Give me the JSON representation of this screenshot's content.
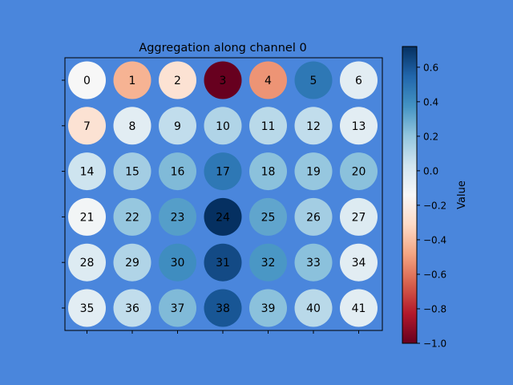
{
  "chart_data": {
    "type": "heatmap",
    "title": "Aggregation along channel 0",
    "rows": 6,
    "cols": 7,
    "cell_labels": [
      "0",
      "1",
      "2",
      "3",
      "4",
      "5",
      "6",
      "7",
      "8",
      "9",
      "10",
      "11",
      "12",
      "13",
      "14",
      "15",
      "16",
      "17",
      "18",
      "19",
      "20",
      "21",
      "22",
      "23",
      "24",
      "25",
      "26",
      "27",
      "28",
      "29",
      "30",
      "31",
      "32",
      "33",
      "34",
      "35",
      "36",
      "37",
      "38",
      "39",
      "40",
      "41"
    ],
    "values": [
      0.0,
      -0.35,
      -0.15,
      -1.0,
      -0.45,
      0.52,
      0.08,
      -0.15,
      0.08,
      0.18,
      0.22,
      0.2,
      0.18,
      0.08,
      0.15,
      0.25,
      0.32,
      0.52,
      0.3,
      0.28,
      0.3,
      0.02,
      0.28,
      0.4,
      0.72,
      0.38,
      0.25,
      0.1,
      0.1,
      0.22,
      0.45,
      0.65,
      0.42,
      0.3,
      0.08,
      0.08,
      0.18,
      0.32,
      0.62,
      0.3,
      0.2,
      0.08
    ],
    "colorbar": {
      "label": "Value",
      "vmin": -1.0,
      "vmax": 0.72,
      "ticks": [
        -1.0,
        -0.8,
        -0.6,
        -0.4,
        -0.2,
        0.0,
        0.2,
        0.4,
        0.6
      ],
      "tick_labels": [
        "−1.0",
        "−0.8",
        "−0.6",
        "−0.4",
        "−0.2",
        "0.0",
        "0.2",
        "0.4",
        "0.6"
      ],
      "colormap": "RdBu"
    },
    "grid": false
  },
  "colors": {
    "figure_background": "#4a86dc",
    "axes_background": "#4a86dc"
  }
}
